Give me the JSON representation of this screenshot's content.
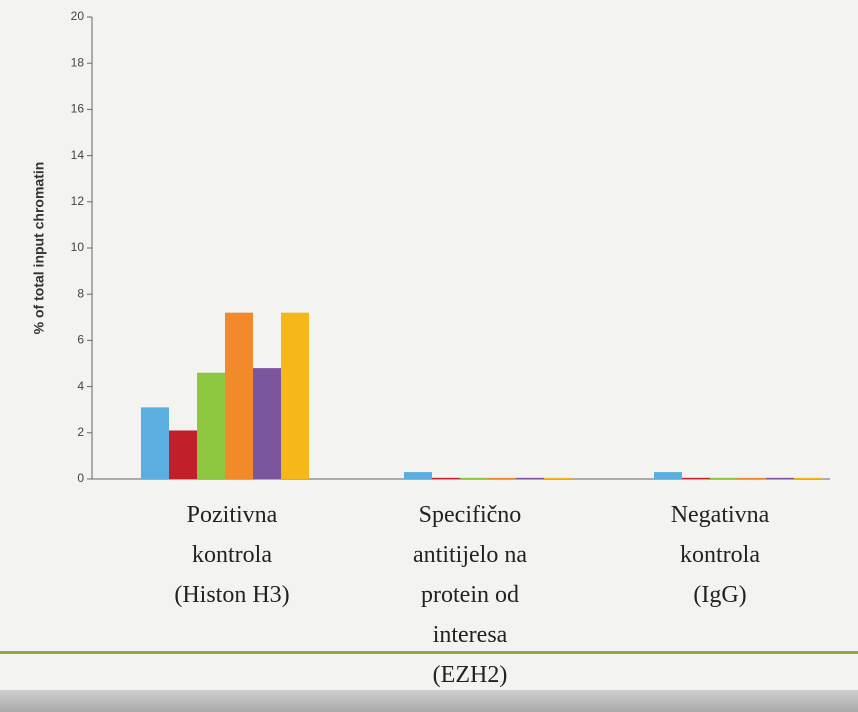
{
  "chart_data": {
    "type": "bar",
    "y_axis_label": "% of total input chromatin",
    "categories": [
      "Pozitivna\nkontrola\n(Histon H3)",
      "Specifično\nantitijelo na\nprotein od\ninteresa\n(EZH2)",
      "Negativna\nkontrola\n(IgG)"
    ],
    "series": [
      {
        "color": "#5aaee0",
        "values": [
          3.1,
          0.3,
          0.3
        ]
      },
      {
        "color": "#c1202b",
        "values": [
          2.1,
          0.05,
          0.05
        ]
      },
      {
        "color": "#8dc63f",
        "values": [
          4.6,
          0.05,
          0.05
        ]
      },
      {
        "color": "#f08a2b",
        "values": [
          7.2,
          0.05,
          0.05
        ]
      },
      {
        "color": "#7b559e",
        "values": [
          4.8,
          0.05,
          0.05
        ]
      },
      {
        "color": "#f6b818",
        "values": [
          7.2,
          0.05,
          0.05
        ]
      }
    ],
    "ylim": [
      0,
      20
    ],
    "yticks": [
      0,
      2,
      4,
      6,
      8,
      10,
      12,
      14,
      16,
      18,
      20
    ]
  }
}
